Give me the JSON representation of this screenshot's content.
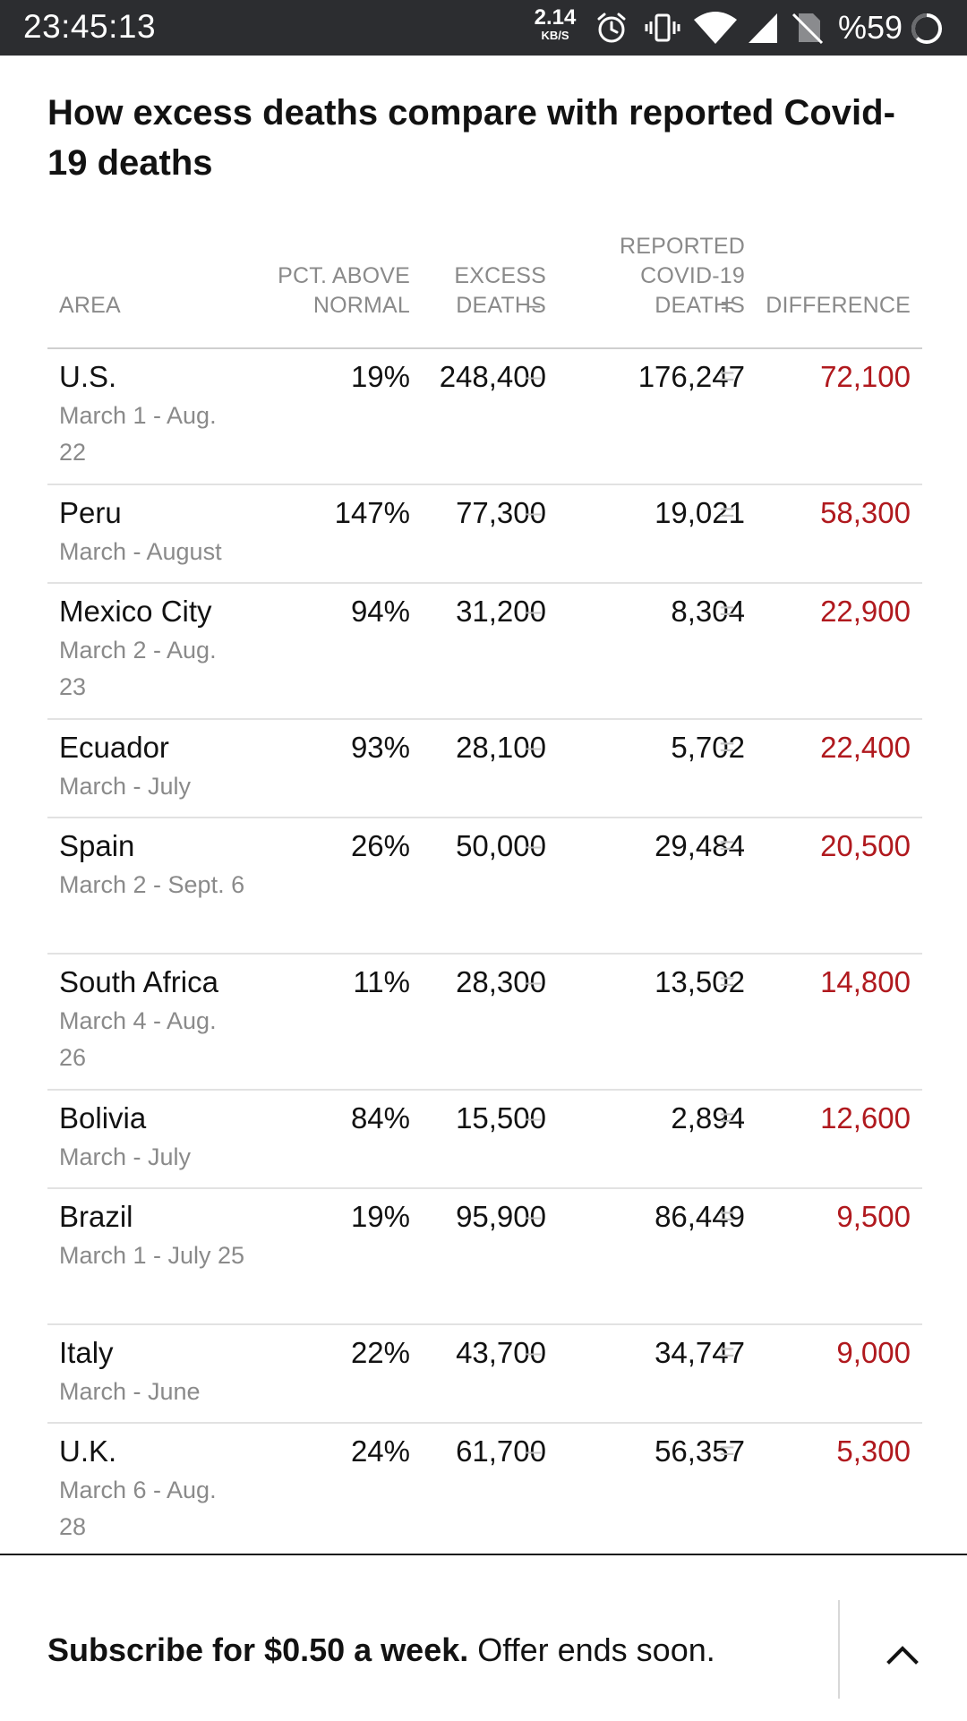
{
  "status_bar": {
    "time": "23:45:13",
    "net_speed": "2.14",
    "net_unit": "KB/S",
    "battery": "%59",
    "icons": [
      "alarm-icon",
      "vibrate-icon",
      "wifi-icon",
      "cell-signal-icon",
      "no-sim-icon",
      "battery-ring-icon"
    ]
  },
  "article": {
    "headline": "How excess deaths compare with reported Covid-19 deaths"
  },
  "table": {
    "headers": {
      "area": "AREA",
      "pct": "PCT. ABOVE NORMAL",
      "excess": "EXCESS DEATHS",
      "minus": "–",
      "reported": "REPORTED COVID-19 DEATHS",
      "equals": "=",
      "difference": "DIFFERENCE"
    },
    "operators": {
      "minus": "–",
      "equals": "="
    },
    "rows": [
      {
        "area": "U.S.",
        "dates": "March 1 - Aug. 22",
        "pct": "19%",
        "excess": "248,400",
        "reported": "176,247",
        "difference": "72,100"
      },
      {
        "area": "Peru",
        "dates": "March - August",
        "pct": "147%",
        "excess": "77,300",
        "reported": "19,021",
        "difference": "58,300"
      },
      {
        "area": "Mexico City",
        "dates": "March 2 - Aug. 23",
        "pct": "94%",
        "excess": "31,200",
        "reported": "8,304",
        "difference": "22,900"
      },
      {
        "area": "Ecuador",
        "dates": "March - July",
        "pct": "93%",
        "excess": "28,100",
        "reported": "5,702",
        "difference": "22,400"
      },
      {
        "area": "Spain",
        "dates": "March 2 - Sept. 6",
        "pct": "26%",
        "excess": "50,000",
        "reported": "29,484",
        "difference": "20,500"
      },
      {
        "area": "South Africa",
        "dates": "March 4 - Aug. 26",
        "pct": "11%",
        "excess": "28,300",
        "reported": "13,502",
        "difference": "14,800"
      },
      {
        "area": "Bolivia",
        "dates": "March - July",
        "pct": "84%",
        "excess": "15,500",
        "reported": "2,894",
        "difference": "12,600"
      },
      {
        "area": "Brazil",
        "dates": "March 1 - July 25",
        "pct": "19%",
        "excess": "95,900",
        "reported": "86,449",
        "difference": "9,500"
      },
      {
        "area": "Italy",
        "dates": "March - June",
        "pct": "22%",
        "excess": "43,700",
        "reported": "34,747",
        "difference": "9,000"
      },
      {
        "area": "U.K.",
        "dates": "March 6 - Aug. 28",
        "pct": "24%",
        "excess": "61,700",
        "reported": "56,357",
        "difference": "5,300"
      }
    ]
  },
  "banner": {
    "bold_text": "Subscribe for $0.50 a week.",
    "text": " Offer ends soon.",
    "chevron_icon": "chevron-up-icon"
  },
  "colors": {
    "status_bar_bg": "#2c2d30",
    "difference_red": "#b0191e",
    "muted_gray": "#8a8a8a"
  }
}
